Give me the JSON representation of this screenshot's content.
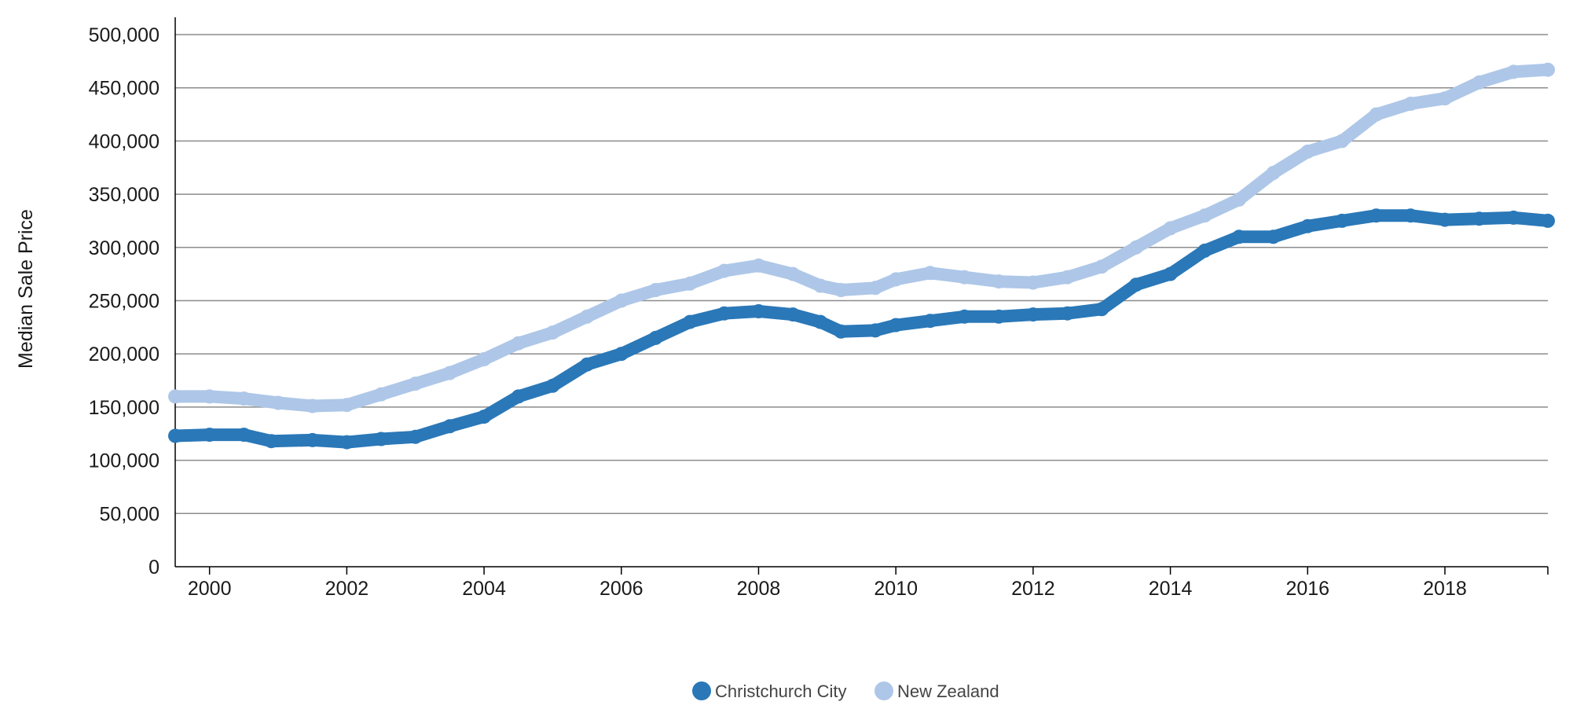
{
  "chart_data": {
    "type": "line",
    "ylabel": "Median Sale Price",
    "xlabel": "",
    "ylim": [
      0,
      500000
    ],
    "xlim": [
      1999.5,
      2019.5
    ],
    "y_ticks": [
      0,
      50000,
      100000,
      150000,
      200000,
      250000,
      300000,
      350000,
      400000,
      450000,
      500000
    ],
    "y_tick_labels": [
      "0",
      "50,000",
      "100,000",
      "150,000",
      "200,000",
      "250,000",
      "300,000",
      "350,000",
      "400,000",
      "450,000",
      "500,000"
    ],
    "x_ticks": [
      2000,
      2002,
      2004,
      2006,
      2008,
      2010,
      2012,
      2014,
      2016,
      2018
    ],
    "x_tick_labels": [
      "2000",
      "2002",
      "2004",
      "2006",
      "2008",
      "2010",
      "2012",
      "2014",
      "2016",
      "2018"
    ],
    "grid": "horizontal",
    "legend_position": "bottom-center",
    "series": [
      {
        "name": "Christchurch City",
        "color": "#2a78b8",
        "points": [
          [
            1999.5,
            123000
          ],
          [
            2000.0,
            124000
          ],
          [
            2000.5,
            124000
          ],
          [
            2000.9,
            118000
          ],
          [
            2001.5,
            119000
          ],
          [
            2002.0,
            117000
          ],
          [
            2002.5,
            120000
          ],
          [
            2003.0,
            122000
          ],
          [
            2003.5,
            132000
          ],
          [
            2004.0,
            141000
          ],
          [
            2004.5,
            160000
          ],
          [
            2005.0,
            170000
          ],
          [
            2005.5,
            190000
          ],
          [
            2006.0,
            200000
          ],
          [
            2006.5,
            215000
          ],
          [
            2007.0,
            230000
          ],
          [
            2007.5,
            238000
          ],
          [
            2008.0,
            240000
          ],
          [
            2008.5,
            237000
          ],
          [
            2008.9,
            230000
          ],
          [
            2009.2,
            221000
          ],
          [
            2009.7,
            222000
          ],
          [
            2010.0,
            227000
          ],
          [
            2010.5,
            231000
          ],
          [
            2011.0,
            235000
          ],
          [
            2011.5,
            235000
          ],
          [
            2012.0,
            237000
          ],
          [
            2012.5,
            238000
          ],
          [
            2013.0,
            242000
          ],
          [
            2013.5,
            265000
          ],
          [
            2014.0,
            275000
          ],
          [
            2014.5,
            297000
          ],
          [
            2015.0,
            310000
          ],
          [
            2015.5,
            310000
          ],
          [
            2016.0,
            320000
          ],
          [
            2016.5,
            325000
          ],
          [
            2017.0,
            330000
          ],
          [
            2017.5,
            330000
          ],
          [
            2018.0,
            326000
          ],
          [
            2018.5,
            327000
          ],
          [
            2019.0,
            328000
          ],
          [
            2019.5,
            325000
          ]
        ]
      },
      {
        "name": "New Zealand",
        "color": "#aec7e8",
        "points": [
          [
            1999.5,
            160000
          ],
          [
            2000.0,
            160000
          ],
          [
            2000.5,
            158000
          ],
          [
            2001.0,
            154000
          ],
          [
            2001.5,
            151000
          ],
          [
            2002.0,
            152000
          ],
          [
            2002.5,
            162000
          ],
          [
            2003.0,
            172000
          ],
          [
            2003.5,
            182000
          ],
          [
            2004.0,
            195000
          ],
          [
            2004.5,
            210000
          ],
          [
            2005.0,
            220000
          ],
          [
            2005.5,
            235000
          ],
          [
            2006.0,
            250000
          ],
          [
            2006.5,
            260000
          ],
          [
            2007.0,
            266000
          ],
          [
            2007.5,
            278000
          ],
          [
            2008.0,
            283000
          ],
          [
            2008.5,
            275000
          ],
          [
            2008.9,
            264000
          ],
          [
            2009.2,
            260000
          ],
          [
            2009.7,
            262000
          ],
          [
            2010.0,
            270000
          ],
          [
            2010.5,
            276000
          ],
          [
            2011.0,
            272000
          ],
          [
            2011.5,
            268000
          ],
          [
            2012.0,
            267000
          ],
          [
            2012.5,
            272000
          ],
          [
            2013.0,
            282000
          ],
          [
            2013.5,
            300000
          ],
          [
            2014.0,
            318000
          ],
          [
            2014.5,
            330000
          ],
          [
            2015.0,
            345000
          ],
          [
            2015.5,
            370000
          ],
          [
            2016.0,
            390000
          ],
          [
            2016.5,
            400000
          ],
          [
            2017.0,
            425000
          ],
          [
            2017.5,
            435000
          ],
          [
            2018.0,
            440000
          ],
          [
            2018.5,
            455000
          ],
          [
            2019.0,
            465000
          ],
          [
            2019.5,
            467000
          ]
        ]
      }
    ]
  }
}
